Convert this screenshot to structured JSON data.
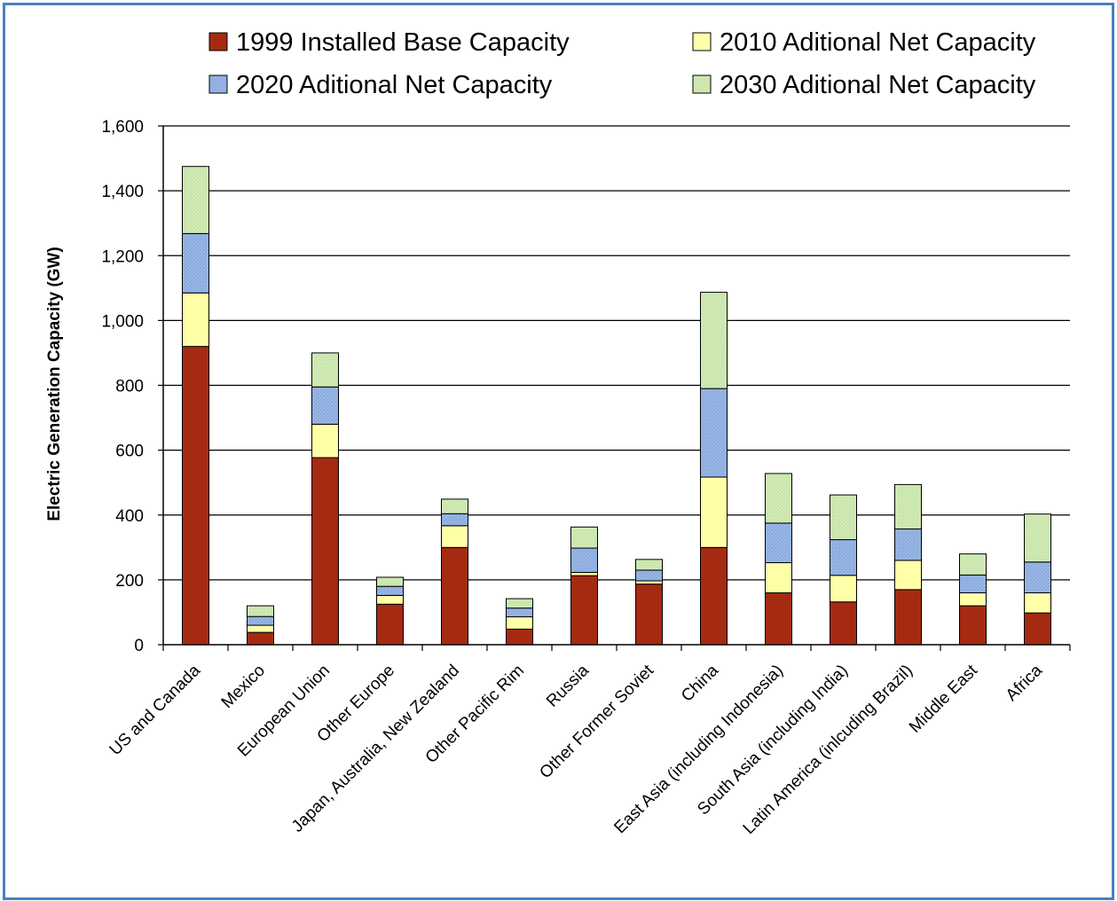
{
  "chart_data": {
    "type": "bar",
    "stacked": true,
    "title": "",
    "xlabel": "",
    "ylabel": "Electric Generation Capacity (GW)",
    "ylim": [
      0,
      1600
    ],
    "y_ticks": [
      "0",
      "200",
      "400",
      "600",
      "800",
      "1,000",
      "1,200",
      "1,400",
      "1,600"
    ],
    "grid": true,
    "legend_position": "top",
    "categories": [
      "US and Canada",
      "Mexico",
      "European Union",
      "Other Europe",
      "Japan, Australia, New Zealand",
      "Other Pacific Rim",
      "Russia",
      "Other Former Soviet",
      "China",
      "East Asia (including Indonesia)",
      "South Asia (including India)",
      "Latin America (inlcuding Brazil)",
      "Middle East",
      "Africa"
    ],
    "series": [
      {
        "name": "1999 Installed Base Capacity",
        "color": "#a52a12",
        "values": [
          920,
          38,
          577,
          125,
          300,
          48,
          213,
          187,
          300,
          160,
          132,
          170,
          120,
          98
        ]
      },
      {
        "name": "2010 Aditional Net Capacity",
        "color": "#ffffa8",
        "values": [
          165,
          22,
          103,
          27,
          67,
          38,
          10,
          10,
          217,
          93,
          82,
          90,
          40,
          62
        ]
      },
      {
        "name": "2020 Aditional Net Capacity",
        "color": "#9ab8e6",
        "values": [
          183,
          27,
          115,
          28,
          37,
          27,
          75,
          33,
          273,
          122,
          110,
          97,
          55,
          95
        ]
      },
      {
        "name": "2030 Aditional Net Capacity",
        "color": "#d3ecb8",
        "values": [
          207,
          33,
          105,
          28,
          45,
          29,
          65,
          33,
          297,
          153,
          138,
          137,
          65,
          148
        ]
      }
    ]
  }
}
